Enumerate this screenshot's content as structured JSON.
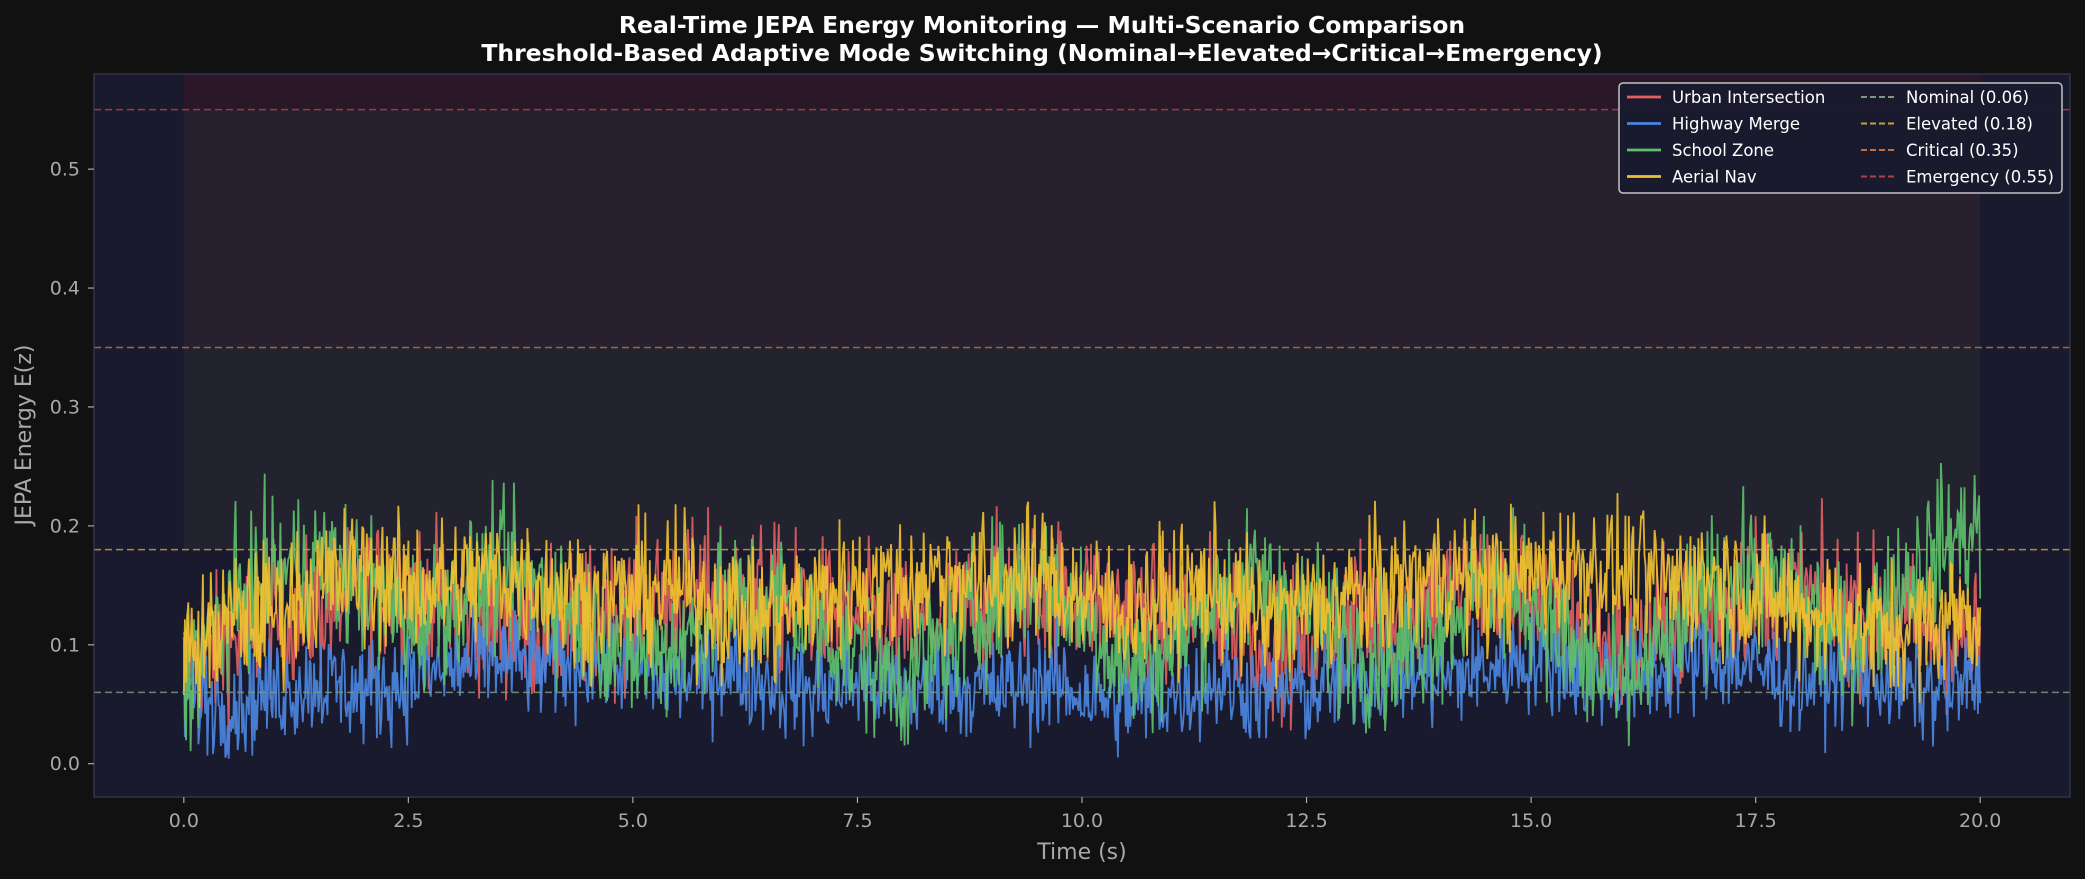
{
  "chart_data": {
    "type": "line",
    "title": "Real-Time JEPA Energy Monitoring — Multi-Scenario Comparison",
    "subtitle": "Threshold-Based Adaptive Mode Switching (Nominal→Elevated→Critical→Emergency)",
    "xlabel": "Time (s)",
    "ylabel": "JEPA Energy E(z)",
    "xlim": [
      -1.0,
      21.0
    ],
    "ylim": [
      -0.028,
      0.58
    ],
    "x_ticks": [
      0.0,
      2.5,
      5.0,
      7.5,
      10.0,
      12.5,
      15.0,
      17.5,
      20.0
    ],
    "x_tick_labels": [
      "0.0",
      "2.5",
      "5.0",
      "7.5",
      "10.0",
      "12.5",
      "15.0",
      "17.5",
      "20.0"
    ],
    "y_ticks": [
      0.0,
      0.1,
      0.2,
      0.3,
      0.4,
      0.5
    ],
    "y_tick_labels": [
      "0.0",
      "0.1",
      "0.2",
      "0.3",
      "0.4",
      "0.5"
    ],
    "grid": false,
    "legend_position": "top-right",
    "colors": {
      "figure_bg": "#111111",
      "axes_bg": "#1a1a2e",
      "axes_border": "#3a3a5a",
      "elevated_band": "#232330",
      "critical_band": "#26202f",
      "emergency_band": "#2a1828",
      "text": "#ffffff",
      "tick_text": "#a8a8a8"
    },
    "series": [
      {
        "name": "Urban Intersection",
        "color": "#e06060",
        "x": [
          0.0,
          0.5,
          1.0,
          1.5,
          2.0,
          2.5,
          3.0,
          3.5,
          4.0,
          4.5,
          5.0,
          5.5,
          6.0,
          6.5,
          7.0,
          7.5,
          8.0,
          8.5,
          9.0,
          9.5,
          10.0,
          10.5,
          11.0,
          11.5,
          12.0,
          12.5,
          13.0,
          13.5,
          14.0,
          14.5,
          15.0,
          15.5,
          16.0,
          16.5,
          17.0,
          17.5,
          18.0,
          18.5,
          19.0,
          19.5,
          20.0
        ],
        "y": [
          0.08,
          0.1,
          0.12,
          0.13,
          0.14,
          0.15,
          0.13,
          0.12,
          0.11,
          0.12,
          0.13,
          0.14,
          0.15,
          0.14,
          0.13,
          0.12,
          0.11,
          0.12,
          0.14,
          0.15,
          0.14,
          0.13,
          0.12,
          0.13,
          0.11,
          0.1,
          0.12,
          0.13,
          0.14,
          0.15,
          0.14,
          0.12,
          0.09,
          0.11,
          0.13,
          0.15,
          0.14,
          0.13,
          0.12,
          0.11,
          0.1
        ]
      },
      {
        "name": "Highway Merge",
        "color": "#4a86e0",
        "x": [
          0.0,
          0.5,
          1.0,
          1.5,
          2.0,
          2.5,
          3.0,
          3.5,
          4.0,
          4.5,
          5.0,
          5.5,
          6.0,
          6.5,
          7.0,
          7.5,
          8.0,
          8.5,
          9.0,
          9.5,
          10.0,
          10.5,
          11.0,
          11.5,
          12.0,
          12.5,
          13.0,
          13.5,
          14.0,
          14.5,
          15.0,
          15.5,
          16.0,
          16.5,
          17.0,
          17.5,
          18.0,
          18.5,
          19.0,
          19.5,
          20.0
        ],
        "y": [
          0.06,
          0.05,
          0.06,
          0.07,
          0.06,
          0.07,
          0.08,
          0.09,
          0.08,
          0.09,
          0.08,
          0.07,
          0.08,
          0.07,
          0.06,
          0.07,
          0.06,
          0.07,
          0.06,
          0.07,
          0.06,
          0.05,
          0.06,
          0.07,
          0.06,
          0.06,
          0.07,
          0.08,
          0.07,
          0.08,
          0.09,
          0.08,
          0.07,
          0.08,
          0.09,
          0.08,
          0.07,
          0.08,
          0.07,
          0.06,
          0.07
        ]
      },
      {
        "name": "School Zone",
        "color": "#5cbf6a",
        "x": [
          0.0,
          0.5,
          1.0,
          1.5,
          2.0,
          2.5,
          3.0,
          3.5,
          4.0,
          4.5,
          5.0,
          5.5,
          6.0,
          6.5,
          7.0,
          7.5,
          8.0,
          8.5,
          9.0,
          9.5,
          10.0,
          10.5,
          11.0,
          11.5,
          12.0,
          12.5,
          13.0,
          13.5,
          14.0,
          14.5,
          15.0,
          15.5,
          16.0,
          16.5,
          17.0,
          17.5,
          18.0,
          18.5,
          19.0,
          19.5,
          20.0
        ],
        "y": [
          0.07,
          0.13,
          0.16,
          0.17,
          0.15,
          0.12,
          0.14,
          0.16,
          0.15,
          0.12,
          0.09,
          0.1,
          0.13,
          0.14,
          0.12,
          0.09,
          0.07,
          0.1,
          0.14,
          0.16,
          0.13,
          0.08,
          0.1,
          0.14,
          0.15,
          0.13,
          0.1,
          0.09,
          0.12,
          0.15,
          0.14,
          0.09,
          0.06,
          0.1,
          0.15,
          0.16,
          0.13,
          0.1,
          0.14,
          0.18,
          0.2
        ]
      },
      {
        "name": "Aerial Nav",
        "color": "#f0c030",
        "x": [
          0.0,
          0.5,
          1.0,
          1.5,
          2.0,
          2.5,
          3.0,
          3.5,
          4.0,
          4.5,
          5.0,
          5.5,
          6.0,
          6.5,
          7.0,
          7.5,
          8.0,
          8.5,
          9.0,
          9.5,
          10.0,
          10.5,
          11.0,
          11.5,
          12.0,
          12.5,
          13.0,
          13.5,
          14.0,
          14.5,
          15.0,
          15.5,
          16.0,
          16.5,
          17.0,
          17.5,
          18.0,
          18.5,
          19.0,
          19.5,
          20.0
        ],
        "y": [
          0.09,
          0.12,
          0.13,
          0.15,
          0.16,
          0.15,
          0.15,
          0.16,
          0.15,
          0.14,
          0.14,
          0.15,
          0.13,
          0.12,
          0.14,
          0.15,
          0.15,
          0.16,
          0.15,
          0.16,
          0.14,
          0.13,
          0.14,
          0.15,
          0.12,
          0.13,
          0.14,
          0.15,
          0.16,
          0.15,
          0.16,
          0.17,
          0.16,
          0.15,
          0.16,
          0.14,
          0.13,
          0.12,
          0.11,
          0.12,
          0.13
        ]
      }
    ],
    "thresholds": [
      {
        "name": "Nominal (0.06)",
        "value": 0.06,
        "color": "#7a9a80"
      },
      {
        "name": "Elevated (0.18)",
        "value": 0.18,
        "color": "#c8a040"
      },
      {
        "name": "Critical (0.35)",
        "value": 0.35,
        "color": "#c07040"
      },
      {
        "name": "Emergency (0.55)",
        "value": 0.55,
        "color": "#b04048"
      }
    ]
  }
}
